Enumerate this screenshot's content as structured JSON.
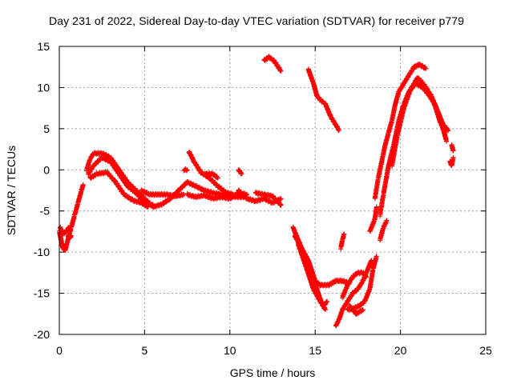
{
  "chart_data": {
    "type": "scatter",
    "title": "Day 231 of 2022, Sidereal Day-to-day VTEC variation (SDTVAR) for receiver p779",
    "xlabel": "GPS time / hours",
    "ylabel": "SDTVAR / TECUs",
    "xlim": [
      0,
      25
    ],
    "ylim": [
      -20,
      15
    ],
    "xticks": [
      0,
      5,
      10,
      15,
      20,
      25
    ],
    "yticks": [
      15,
      10,
      5,
      0,
      -5,
      -10,
      -15,
      -20
    ],
    "grid": true,
    "marker": "+",
    "color": "#ff0000",
    "tracks": [
      [
        [
          0.0,
          -7.5
        ],
        [
          0.1,
          -8.5
        ],
        [
          0.2,
          -9.5
        ],
        [
          0.35,
          -9.8
        ],
        [
          0.5,
          -8.5
        ],
        [
          0.7,
          -7.0
        ],
        [
          0.9,
          -5.5
        ],
        [
          1.1,
          -4.0
        ],
        [
          1.3,
          -2.5
        ],
        [
          1.4,
          -1.8
        ]
      ],
      [
        [
          0.05,
          -7.0
        ],
        [
          0.2,
          -7.8
        ],
        [
          0.4,
          -7.5
        ],
        [
          0.55,
          -7.0
        ]
      ],
      [
        [
          0.5,
          -8.0
        ],
        [
          0.6,
          -8.3
        ],
        [
          0.7,
          -8.0
        ]
      ],
      [
        [
          1.6,
          0.0
        ],
        [
          1.8,
          1.3
        ],
        [
          2.0,
          2.0
        ],
        [
          2.5,
          2.0
        ],
        [
          3.0,
          1.5
        ],
        [
          3.5,
          0.0
        ],
        [
          4.0,
          -1.5
        ],
        [
          4.5,
          -2.5
        ],
        [
          5.0,
          -3.5
        ],
        [
          5.5,
          -4.5
        ],
        [
          6.0,
          -4.2
        ],
        [
          6.5,
          -3.5
        ],
        [
          7.0,
          -2.5
        ]
      ],
      [
        [
          1.7,
          -0.5
        ],
        [
          2.0,
          0.5
        ],
        [
          2.5,
          1.5
        ],
        [
          3.0,
          1.0
        ],
        [
          3.5,
          -0.5
        ],
        [
          4.0,
          -2.0
        ],
        [
          4.5,
          -2.8
        ],
        [
          5.0,
          -4.0
        ],
        [
          5.5,
          -4.3
        ]
      ],
      [
        [
          1.8,
          -1.0
        ],
        [
          2.2,
          -0.5
        ],
        [
          2.8,
          -0.3
        ],
        [
          3.3,
          -1.5
        ],
        [
          3.8,
          -3.0
        ],
        [
          4.3,
          -3.7
        ],
        [
          4.8,
          -4.0
        ],
        [
          5.2,
          -4.5
        ]
      ],
      [
        [
          4.8,
          -2.5
        ],
        [
          5.3,
          -3.0
        ],
        [
          5.8,
          -3.0
        ],
        [
          6.3,
          -3.0
        ],
        [
          6.8,
          -3.2
        ],
        [
          7.3,
          -3.0
        ]
      ],
      [
        [
          7.0,
          -2.5
        ],
        [
          7.5,
          -1.5
        ],
        [
          8.0,
          -2.0
        ],
        [
          8.5,
          -2.5
        ],
        [
          9.0,
          -2.8
        ],
        [
          9.5,
          -3.0
        ],
        [
          10.0,
          -3.2
        ],
        [
          10.5,
          -3.3
        ],
        [
          11.0,
          -3.3
        ]
      ],
      [
        [
          7.6,
          2.2
        ],
        [
          7.9,
          1.0
        ],
        [
          8.3,
          -0.3
        ],
        [
          8.8,
          -1.0
        ],
        [
          9.3,
          -2.0
        ],
        [
          9.8,
          -2.8
        ],
        [
          10.2,
          -3.0
        ]
      ],
      [
        [
          8.5,
          -0.5
        ],
        [
          9.0,
          -0.5
        ],
        [
          9.3,
          -1.0
        ]
      ],
      [
        [
          7.5,
          -3.0
        ],
        [
          8.0,
          -3.3
        ],
        [
          8.5,
          -3.1
        ],
        [
          9.0,
          -3.5
        ],
        [
          9.5,
          -3.3
        ],
        [
          10.0,
          -3.5
        ],
        [
          10.5,
          -2.8
        ],
        [
          11.0,
          -3.0
        ]
      ],
      [
        [
          10.5,
          -2.5
        ],
        [
          11.0,
          -3.5
        ],
        [
          11.5,
          -3.8
        ],
        [
          12.0,
          -3.5
        ],
        [
          12.5,
          -4.0
        ],
        [
          13.0,
          -3.5
        ]
      ],
      [
        [
          11.5,
          -2.8
        ],
        [
          12.0,
          -3.0
        ],
        [
          12.5,
          -3.2
        ],
        [
          13.0,
          -4.3
        ]
      ],
      [
        [
          7.3,
          0.0
        ],
        [
          7.5,
          0.0
        ]
      ],
      [
        [
          10.5,
          0.0
        ],
        [
          10.7,
          -0.5
        ]
      ],
      [
        [
          12.0,
          13.3
        ],
        [
          12.3,
          13.7
        ],
        [
          12.6,
          13.2
        ],
        [
          12.8,
          12.6
        ],
        [
          13.0,
          12.0
        ]
      ],
      [
        [
          14.6,
          12.2
        ],
        [
          14.9,
          10.5
        ],
        [
          15.1,
          9.0
        ],
        [
          15.3,
          8.5
        ],
        [
          15.6,
          8.0
        ],
        [
          15.9,
          6.5
        ],
        [
          16.2,
          5.5
        ],
        [
          16.4,
          4.8
        ]
      ],
      [
        [
          13.7,
          -7.0
        ],
        [
          14.0,
          -8.5
        ],
        [
          14.3,
          -10.0
        ],
        [
          14.6,
          -11.5
        ],
        [
          14.9,
          -13.0
        ],
        [
          15.1,
          -14.5
        ],
        [
          15.3,
          -15.8
        ],
        [
          15.5,
          -16.5
        ],
        [
          15.7,
          -16.0
        ]
      ],
      [
        [
          13.8,
          -8.0
        ],
        [
          14.2,
          -9.5
        ],
        [
          14.6,
          -11.0
        ],
        [
          15.0,
          -13.5
        ],
        [
          15.3,
          -14.0
        ],
        [
          15.8,
          -14.0
        ],
        [
          16.2,
          -13.5
        ],
        [
          16.6,
          -13.5
        ],
        [
          17.0,
          -13.8
        ]
      ],
      [
        [
          14.0,
          -9.0
        ],
        [
          14.5,
          -12.0
        ],
        [
          14.9,
          -14.5
        ],
        [
          15.3,
          -16.0
        ],
        [
          15.6,
          -17.0
        ]
      ],
      [
        [
          16.2,
          -19.0
        ],
        [
          16.4,
          -18.2
        ],
        [
          16.6,
          -17.0
        ],
        [
          16.9,
          -16.0
        ],
        [
          17.2,
          -15.0
        ],
        [
          17.5,
          -14.5
        ],
        [
          17.8,
          -13.5
        ],
        [
          18.0,
          -12.5
        ],
        [
          18.2,
          -11.5
        ],
        [
          18.3,
          -11.0
        ]
      ],
      [
        [
          16.6,
          -15.5
        ],
        [
          16.9,
          -14.0
        ],
        [
          17.2,
          -13.0
        ],
        [
          17.5,
          -12.5
        ],
        [
          17.8,
          -12.5
        ],
        [
          18.0,
          -13.0
        ]
      ],
      [
        [
          16.9,
          -17.0
        ],
        [
          17.3,
          -16.8
        ],
        [
          17.6,
          -16.5
        ],
        [
          17.9,
          -16.0
        ],
        [
          18.2,
          -14.5
        ],
        [
          18.4,
          -12.0
        ],
        [
          18.6,
          -10.5
        ]
      ],
      [
        [
          16.5,
          -9.5
        ],
        [
          16.6,
          -8.5
        ],
        [
          16.7,
          -7.8
        ]
      ],
      [
        [
          17.0,
          -16.5
        ],
        [
          17.4,
          -17.5
        ],
        [
          17.8,
          -17.0
        ]
      ],
      [
        [
          18.2,
          -7.5
        ],
        [
          18.5,
          -6.0
        ],
        [
          18.6,
          -4.5
        ]
      ],
      [
        [
          18.8,
          -8.5
        ],
        [
          19.0,
          -7.0
        ],
        [
          19.2,
          -6.2
        ]
      ],
      [
        [
          18.5,
          -3.5
        ],
        [
          18.7,
          -1.0
        ],
        [
          18.9,
          1.0
        ],
        [
          19.1,
          3.0
        ],
        [
          19.3,
          4.5
        ],
        [
          19.5,
          6.0
        ],
        [
          19.7,
          8.0
        ],
        [
          19.9,
          9.5
        ],
        [
          20.2,
          10.5
        ],
        [
          20.5,
          11.5
        ],
        [
          20.8,
          12.5
        ],
        [
          21.1,
          12.8
        ],
        [
          21.5,
          12.3
        ]
      ],
      [
        [
          18.8,
          -5.5
        ],
        [
          19.0,
          -3.0
        ],
        [
          19.3,
          0.5
        ],
        [
          19.6,
          3.0
        ],
        [
          19.9,
          6.0
        ],
        [
          20.2,
          8.0
        ],
        [
          20.5,
          9.5
        ],
        [
          20.9,
          10.5
        ],
        [
          21.3,
          10.0
        ],
        [
          21.7,
          9.0
        ],
        [
          22.0,
          8.0
        ],
        [
          22.3,
          6.5
        ],
        [
          22.5,
          5.0
        ],
        [
          22.7,
          3.5
        ]
      ],
      [
        [
          19.5,
          0.5
        ],
        [
          19.8,
          4.0
        ],
        [
          20.2,
          7.5
        ],
        [
          20.6,
          9.8
        ],
        [
          21.0,
          11.2
        ],
        [
          21.3,
          10.5
        ],
        [
          21.6,
          9.5
        ],
        [
          22.0,
          8.0
        ],
        [
          22.3,
          6.0
        ],
        [
          22.6,
          4.5
        ]
      ],
      [
        [
          21.2,
          10.8
        ],
        [
          21.5,
          10.0
        ],
        [
          21.8,
          9.0
        ],
        [
          22.2,
          7.0
        ],
        [
          22.5,
          5.5
        ],
        [
          22.8,
          4.8
        ]
      ],
      [
        [
          23.0,
          3.0
        ],
        [
          23.1,
          2.3
        ]
      ],
      [
        [
          22.9,
          1.0
        ],
        [
          23.0,
          0.5
        ],
        [
          23.1,
          1.5
        ]
      ]
    ]
  }
}
